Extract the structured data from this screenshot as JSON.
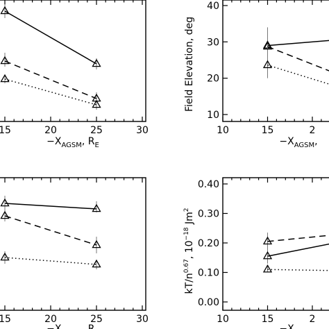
{
  "chart_data": [
    {
      "id": "top-left",
      "type": "line",
      "title": "",
      "xlabel": "−X",
      "xlabel_sub": "AGSM",
      "xlabel_suffix": ", R",
      "xlabel_suffix_sub": "E",
      "ylabel": "",
      "xlim": [
        15,
        30
      ],
      "xticks": [
        "15",
        "20",
        "25",
        "30"
      ],
      "yticks": [],
      "series": [
        {
          "style": "solid",
          "x": [
            15,
            25
          ],
          "err_low": [
            6,
            84
          ],
          "err_high": [
            26,
            100
          ],
          "y": [
            16,
            92
          ]
        },
        {
          "style": "dashed",
          "x": [
            15,
            25
          ],
          "err_low": [
            76,
            133
          ],
          "err_high": [
            96,
            147
          ],
          "y": [
            88,
            142
          ]
        },
        {
          "style": "dotted",
          "x": [
            15,
            25
          ],
          "err_low": [
            108,
            145
          ],
          "err_high": [
            120,
            158
          ],
          "y": [
            114,
            151
          ]
        }
      ]
    },
    {
      "id": "top-right",
      "type": "line",
      "title": "",
      "xlabel": "−X",
      "xlabel_sub": "AGSM",
      "xlabel_suffix": ",",
      "xlabel_suffix_sub": "",
      "ylabel": "Field Elevation, deg",
      "xlim": [
        10,
        30
      ],
      "ylim": [
        10,
        40
      ],
      "xticks": [
        "10",
        "15",
        "2"
      ],
      "yticks": [
        "10",
        "20",
        "30",
        "40"
      ],
      "series": [
        {
          "style": "solid",
          "x": [
            15,
            25
          ],
          "err_low": [
            25,
            28
          ],
          "err_high": [
            34,
            30
          ],
          "y": [
            29,
            31
          ]
        },
        {
          "style": "dashed",
          "x": [
            15,
            25
          ],
          "err_low": [
            26.5,
            17
          ],
          "err_high": [
            30,
            22
          ],
          "y": [
            28.7,
            19
          ]
        },
        {
          "style": "dotted",
          "x": [
            15,
            25
          ],
          "err_low": [
            20,
            14
          ],
          "err_high": [
            26.5,
            18
          ],
          "y": [
            23.6,
            16
          ]
        }
      ]
    },
    {
      "id": "bottom-left",
      "type": "line",
      "title": "",
      "xlabel": "−X",
      "xlabel_sub": "AGSM",
      "xlabel_suffix": ", R",
      "xlabel_suffix_sub": "E",
      "ylabel": "",
      "xlim": [
        15,
        30
      ],
      "xticks": [
        "15",
        "20",
        "25",
        "30"
      ],
      "yticks": [],
      "series": [
        {
          "style": "solid",
          "x": [
            15,
            25
          ],
          "err_low": [
            282,
            290
          ],
          "err_high": [
            304,
            306
          ],
          "y": [
            293,
            301
          ]
        },
        {
          "style": "dashed",
          "x": [
            15,
            25
          ],
          "err_low": [
            303,
            341
          ],
          "err_high": [
            319,
            365
          ],
          "y": [
            311,
            353
          ]
        },
        {
          "style": "dotted",
          "x": [
            15,
            25
          ],
          "err_low": [
            362,
            375
          ],
          "err_high": [
            380,
            388
          ],
          "y": [
            371,
            381
          ]
        }
      ]
    },
    {
      "id": "bottom-right",
      "type": "line",
      "title": "",
      "xlabel": "−X",
      "xlabel_sub": "AGSM",
      "xlabel_suffix": ",",
      "xlabel_suffix_sub": "",
      "ylabel": "kT/n",
      "ylabel_sup": "0.67",
      "ylabel_mid": ", 10",
      "ylabel_sup2": "−18",
      "ylabel_tail": " Jm",
      "ylabel_sup3": "2",
      "xlim": [
        10,
        30
      ],
      "ylim": [
        0.0,
        0.4
      ],
      "xticks": [
        "10",
        "15",
        "2"
      ],
      "yticks": [
        "0.00",
        "0.10",
        "0.20",
        "0.30",
        "0.40"
      ],
      "series": [
        {
          "style": "solid",
          "x": [
            15,
            25
          ],
          "err_low": [
            0.13,
            0.19
          ],
          "err_high": [
            0.18,
            0.23
          ],
          "y": [
            0.155,
            0.215
          ]
        },
        {
          "style": "dashed",
          "x": [
            15,
            25
          ],
          "err_low": [
            0.18,
            0.22
          ],
          "err_high": [
            0.235,
            0.25
          ],
          "y": [
            0.205,
            0.235
          ]
        },
        {
          "style": "dotted",
          "x": [
            15,
            25
          ],
          "err_low": [
            0.1,
            0.1
          ],
          "err_high": [
            0.12,
            0.11
          ],
          "y": [
            0.11,
            0.105
          ]
        }
      ]
    }
  ]
}
